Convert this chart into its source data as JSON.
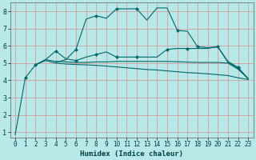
{
  "xlabel": "Humidex (Indice chaleur)",
  "bg_color": "#b8e8e8",
  "grid_color": "#d0a0a0",
  "line_color": "#006868",
  "xlim": [
    -0.5,
    23.5
  ],
  "ylim": [
    0.7,
    8.5
  ],
  "xticks": [
    0,
    1,
    2,
    3,
    4,
    5,
    6,
    7,
    8,
    9,
    10,
    11,
    12,
    13,
    14,
    15,
    16,
    17,
    18,
    19,
    20,
    21,
    22,
    23
  ],
  "yticks": [
    1,
    2,
    3,
    4,
    5,
    6,
    7,
    8
  ],
  "line1_x": [
    0,
    1,
    2,
    3,
    4,
    5,
    6,
    7,
    8,
    9,
    10,
    11,
    12,
    13,
    14,
    15,
    16,
    17,
    18,
    19,
    20,
    21,
    22,
    23
  ],
  "line1_y": [
    0.85,
    4.15,
    4.9,
    5.15,
    5.0,
    4.95,
    4.92,
    4.9,
    4.87,
    4.83,
    4.78,
    4.73,
    4.68,
    4.63,
    4.6,
    4.55,
    4.5,
    4.45,
    4.42,
    4.38,
    4.33,
    4.28,
    4.15,
    4.05
  ],
  "line2_x": [
    2,
    3,
    4,
    5,
    6,
    7,
    8,
    9,
    10,
    11,
    12,
    13,
    14,
    15,
    16,
    17,
    18,
    19,
    20,
    21,
    22,
    23
  ],
  "line2_y": [
    4.9,
    5.2,
    5.7,
    5.25,
    5.15,
    5.35,
    5.5,
    5.65,
    5.35,
    5.35,
    5.35,
    5.35,
    5.35,
    5.8,
    5.85,
    5.85,
    5.85,
    5.85,
    5.95,
    5.1,
    4.75,
    4.1
  ],
  "line3_x": [
    2,
    3,
    4,
    5,
    6,
    7,
    8,
    9,
    10,
    11,
    12,
    13,
    14,
    15,
    16,
    17,
    18,
    19,
    20,
    21,
    22,
    23
  ],
  "line3_y": [
    4.9,
    5.2,
    5.1,
    5.07,
    5.04,
    5.04,
    5.07,
    5.07,
    5.1,
    5.1,
    5.1,
    5.1,
    5.1,
    5.1,
    5.08,
    5.06,
    5.04,
    5.04,
    5.04,
    5.0,
    4.65,
    4.1
  ],
  "line4_x": [
    4,
    5,
    6,
    7,
    8,
    9,
    10,
    11,
    12,
    13,
    14,
    15,
    16,
    17,
    18,
    19,
    20,
    21,
    22,
    23
  ],
  "line4_y": [
    5.05,
    5.2,
    5.8,
    7.55,
    7.75,
    7.6,
    8.15,
    8.15,
    8.15,
    7.5,
    8.2,
    8.2,
    6.9,
    6.85,
    5.95,
    5.9,
    5.95,
    5.05,
    4.7,
    4.1
  ],
  "line1_markers": [
    1
  ],
  "line2_markers": [
    0,
    2,
    4,
    6,
    8,
    10,
    13,
    15,
    18,
    20
  ],
  "line3_markers": [],
  "line4_markers": [
    2,
    4,
    6,
    8,
    12,
    14,
    18
  ],
  "marker": "D",
  "marker_size": 2.5,
  "linewidth": 0.8,
  "xlabel_fontsize": 6.5,
  "tick_fontsize": 5.5
}
